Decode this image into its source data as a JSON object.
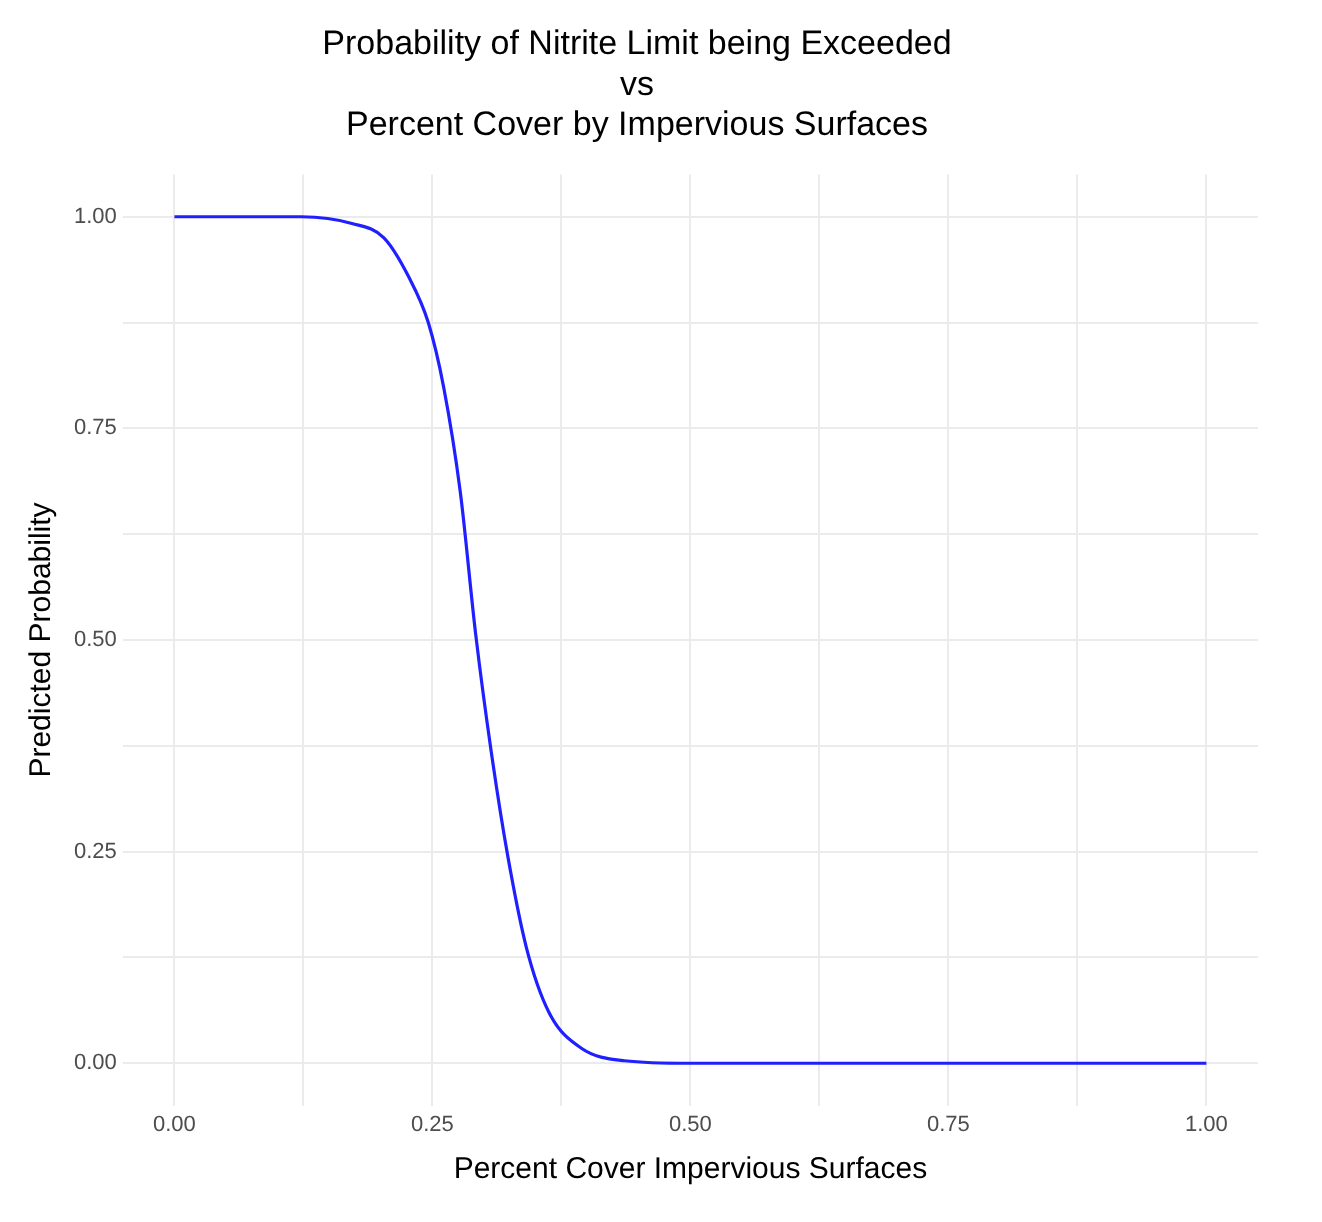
{
  "chart_data": {
    "type": "line",
    "title": "Probability of Nitrite Limit being Exceeded\nvs\nPercent Cover by Impervious Surfaces",
    "xlabel": "Percent Cover Impervious Surfaces",
    "ylabel": "Predicted Probability",
    "x": [
      0,
      0.123,
      0.172,
      0.203,
      0.227,
      0.246,
      0.261,
      0.277,
      0.292,
      0.307,
      0.323,
      0.341,
      0.363,
      0.394,
      0.436,
      0.5,
      0.6,
      0.75,
      0.9,
      1
    ],
    "series": [
      {
        "color": "#1f1fff",
        "values": [
          1,
          1,
          0.992,
          0.975,
          0.929,
          0.875,
          0.798,
          0.675,
          0.506,
          0.368,
          0.245,
          0.137,
          0.06,
          0.018,
          0.003,
          0,
          0,
          0,
          0,
          0
        ]
      }
    ],
    "xlim": [
      -0.05,
      1.05
    ],
    "ylim": [
      -0.05,
      1.05
    ],
    "xticks": [
      {
        "value": 0,
        "label": "0.00"
      },
      {
        "value": 0.125,
        "label": null
      },
      {
        "value": 0.25,
        "label": "0.25"
      },
      {
        "value": 0.375,
        "label": null
      },
      {
        "value": 0.5,
        "label": "0.50"
      },
      {
        "value": 0.625,
        "label": null
      },
      {
        "value": 0.75,
        "label": "0.75"
      },
      {
        "value": 0.875,
        "label": null
      },
      {
        "value": 1,
        "label": "1.00"
      }
    ],
    "yticks": [
      {
        "value": 0,
        "label": "0.00"
      },
      {
        "value": 0.125,
        "label": null
      },
      {
        "value": 0.25,
        "label": "0.25"
      },
      {
        "value": 0.375,
        "label": null
      },
      {
        "value": 0.5,
        "label": "0.50"
      },
      {
        "value": 0.625,
        "label": null
      },
      {
        "value": 0.75,
        "label": "0.75"
      },
      {
        "value": 0.875,
        "label": null
      },
      {
        "value": 1,
        "label": "1.00"
      }
    ],
    "grid": true,
    "legend": false,
    "marker": "none",
    "line_style": "solid"
  }
}
